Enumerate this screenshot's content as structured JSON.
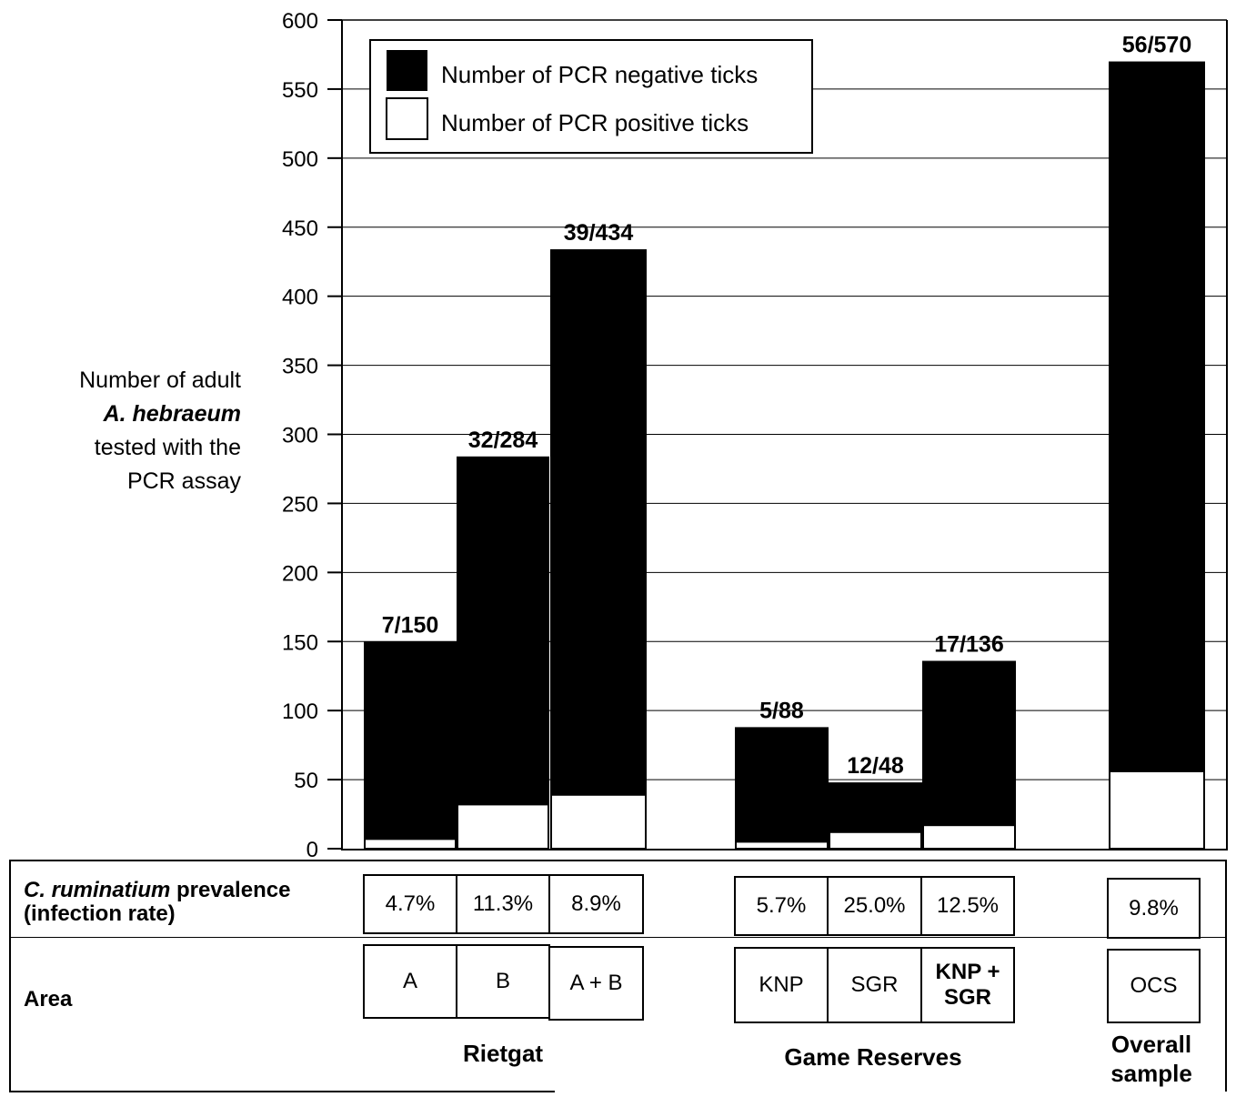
{
  "chart_data": {
    "type": "bar",
    "stacked": true,
    "ylim": [
      0,
      600
    ],
    "yticks": [
      0,
      50,
      100,
      150,
      200,
      250,
      300,
      350,
      400,
      450,
      500,
      550,
      600
    ],
    "grid": true,
    "legend_position": "top-left",
    "ylabel": {
      "line1": "Number of adult",
      "line2": "A. hebraeum",
      "line3": "tested with the",
      "line4": "PCR assay"
    },
    "series": [
      {
        "name": "Number of PCR negative ticks",
        "color": "#000000",
        "values": [
          143,
          252,
          395,
          83,
          36,
          119,
          514
        ]
      },
      {
        "name": "Number of PCR positive ticks",
        "color": "#ffffff",
        "values": [
          7,
          32,
          39,
          5,
          12,
          17,
          56
        ]
      }
    ],
    "bars": [
      {
        "label": "7/150",
        "prevalence": "4.7%",
        "area": "A"
      },
      {
        "label": "32/284",
        "prevalence": "11.3%",
        "area": "B"
      },
      {
        "label": "39/434",
        "prevalence": "8.9%",
        "area": "A + B"
      },
      {
        "label": "5/88",
        "prevalence": "5.7%",
        "area": "KNP"
      },
      {
        "label": "12/48",
        "prevalence": "25.0%",
        "area": "SGR"
      },
      {
        "label": "17/136",
        "prevalence": "12.5%",
        "area_line1": "KNP +",
        "area_line2": "SGR"
      },
      {
        "label": "56/570",
        "prevalence": "9.8%",
        "area": "OCS"
      }
    ]
  },
  "table": {
    "prevalence_label_italic": "C. ruminatium",
    "prevalence_label_rest": " prevalence",
    "prevalence_label_line2": "(infection rate)",
    "area_label": "Area"
  },
  "groups": {
    "rietgat": "Rietgat",
    "game_reserves": "Game Reserves",
    "overall_line1": "Overall",
    "overall_line2": "sample"
  }
}
